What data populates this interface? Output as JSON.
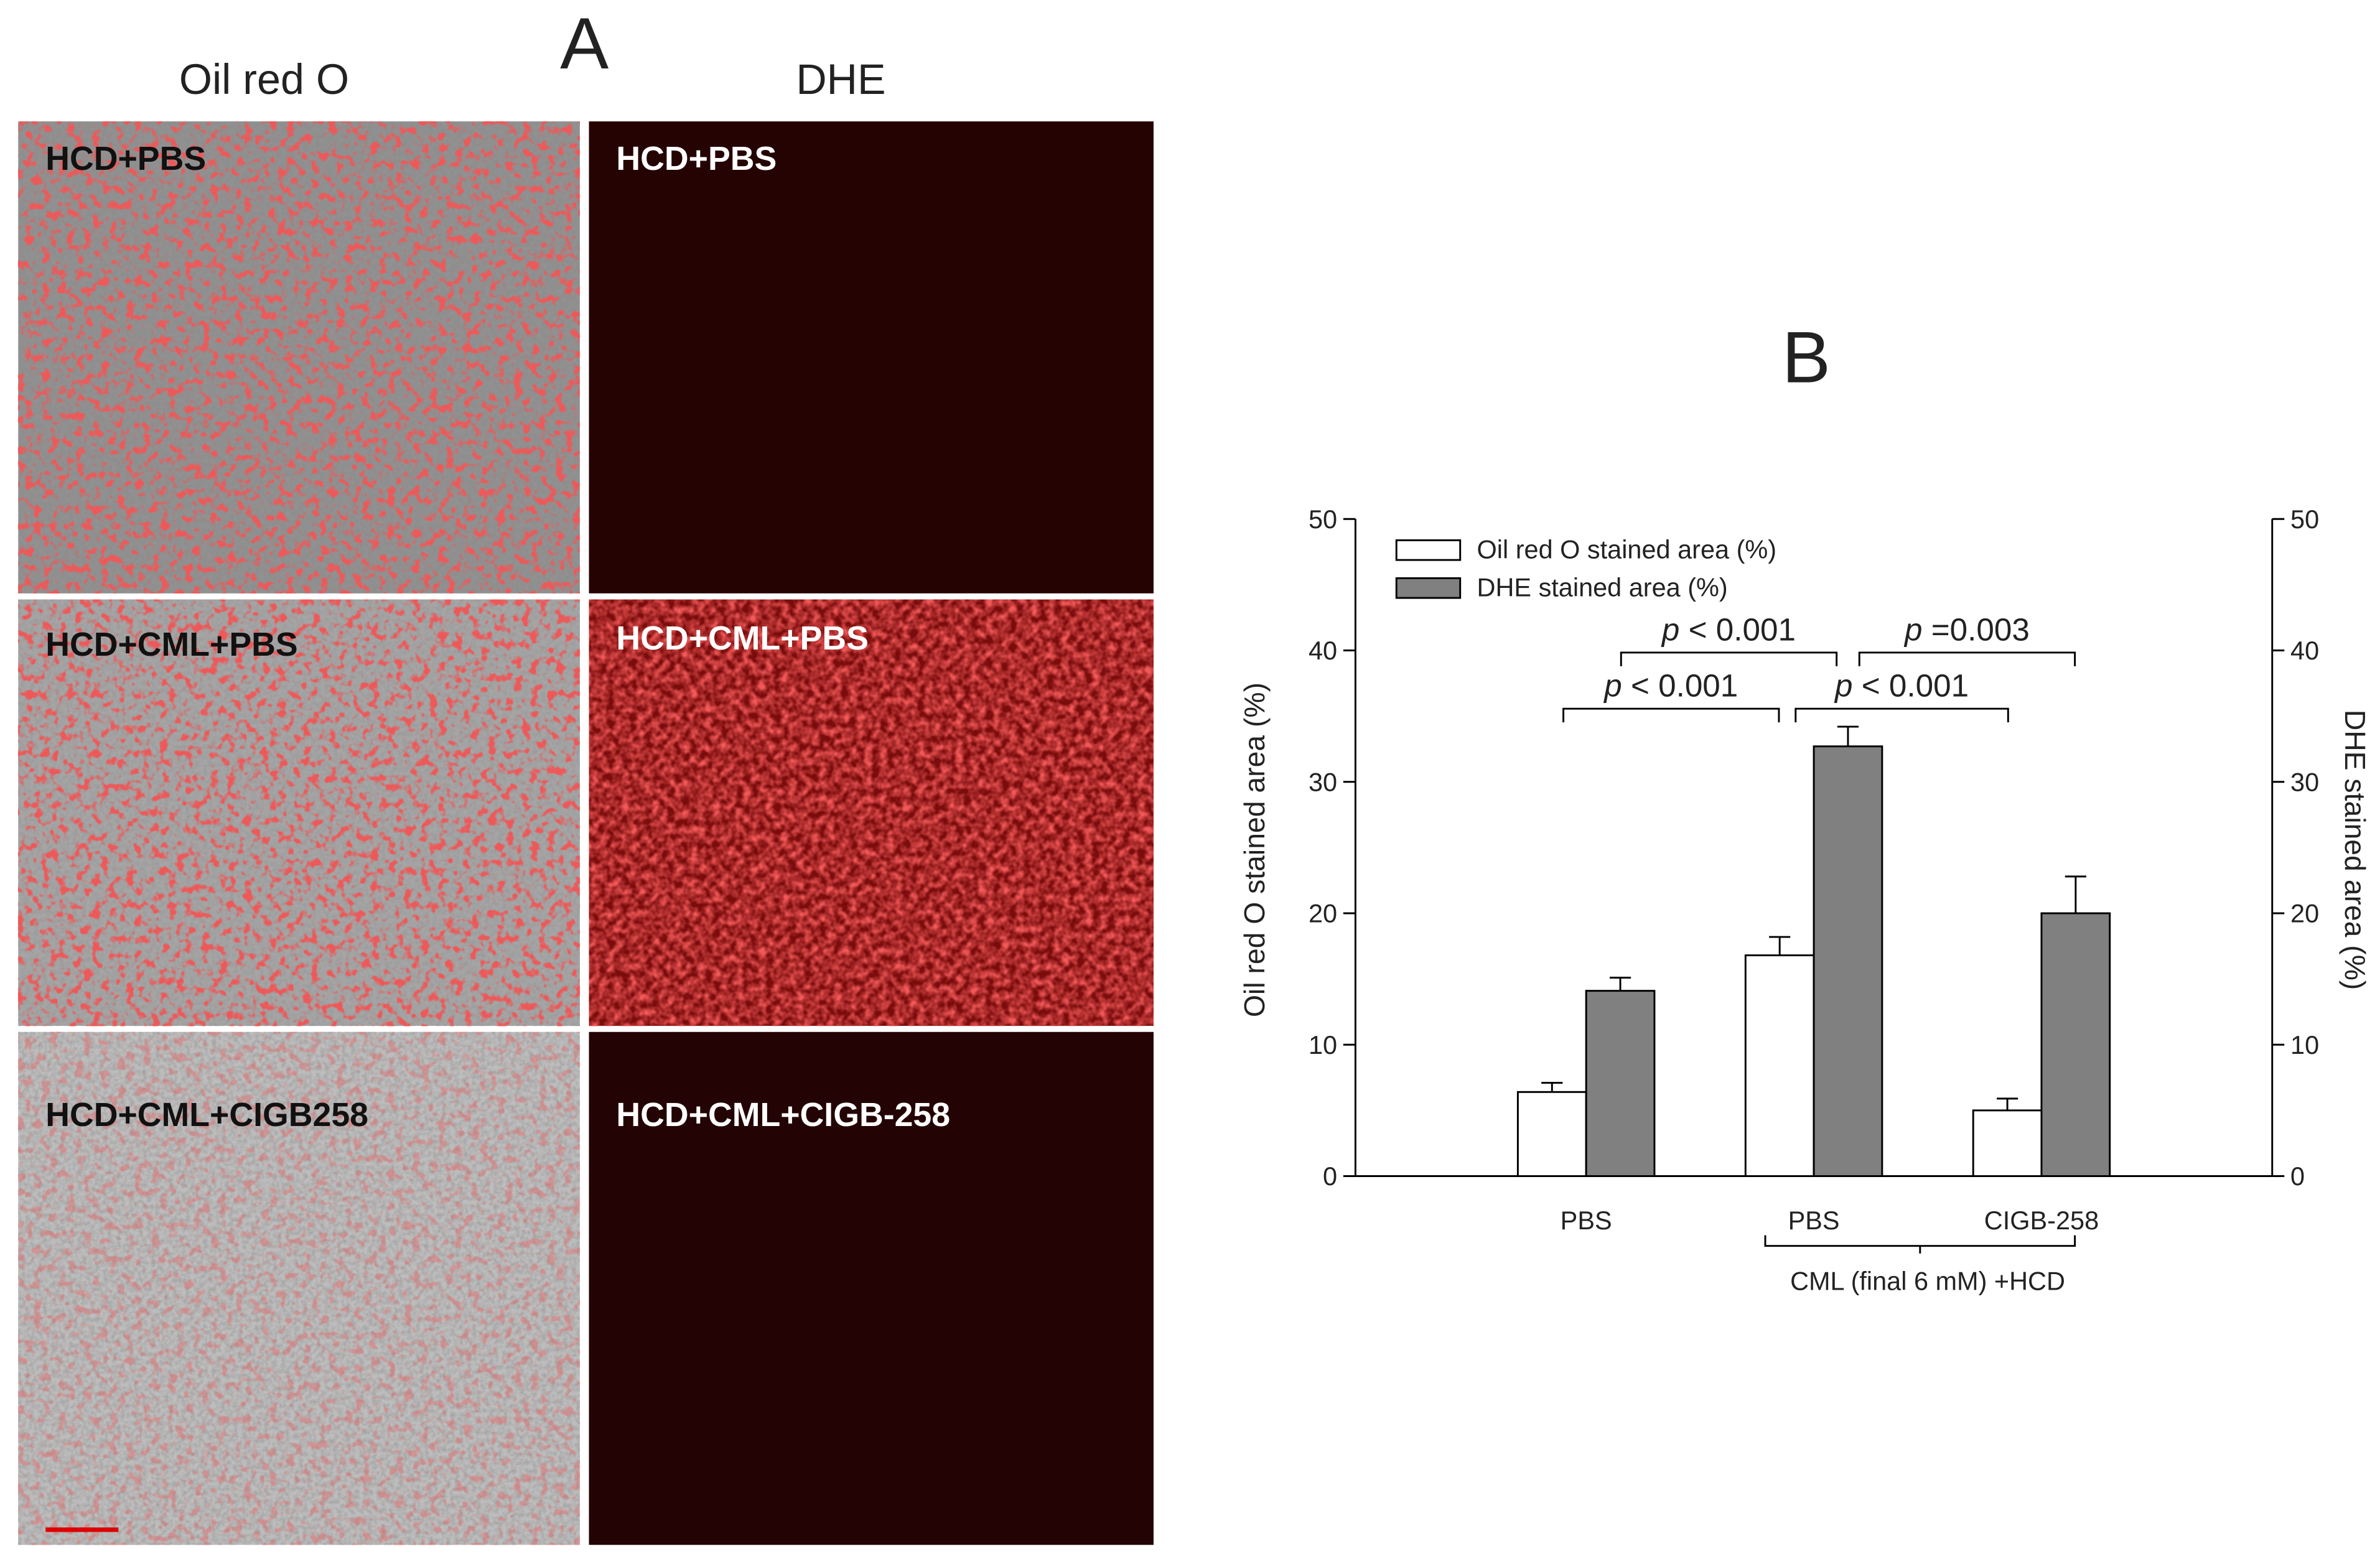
{
  "panel_a": {
    "letter": "A",
    "columns": [
      "Oil red O",
      "DHE"
    ],
    "labels": [
      [
        "HCD+PBS",
        "HCD+CML+PBS",
        "HCD+CML+CIGB258"
      ],
      [
        "HCD+PBS",
        "HCD+CML+PBS",
        "HCD+CML+CIGB-258"
      ]
    ]
  },
  "chart_data": {
    "type": "bar",
    "title": "B",
    "categories": [
      "PBS",
      "PBS",
      "CIGB-258"
    ],
    "group_label": "CML (final 6 mM) +HCD",
    "series": [
      {
        "name": "Oil red O stained area (%)",
        "color": "#ffffff",
        "values": [
          6.4,
          16.8,
          5.0
        ],
        "errors": [
          0.7,
          1.4,
          0.9
        ]
      },
      {
        "name": "DHE stained area (%)",
        "color": "#808080",
        "values": [
          14.1,
          32.7,
          20.0
        ],
        "errors": [
          1.0,
          1.5,
          2.8
        ],
        "axis": "y2"
      }
    ],
    "ylabel": "Oil red O stained area (%)",
    "y2label": "DHE stained area (%)",
    "ylim": [
      0,
      50
    ],
    "yticks": [
      0,
      10,
      20,
      30,
      40,
      50
    ],
    "y2lim": [
      0,
      50
    ],
    "y2ticks": [
      0,
      10,
      20,
      30,
      40,
      50
    ],
    "legend": "upper left",
    "annotations": [
      {
        "p": "p",
        "text": "< 0.001"
      },
      {
        "p": "p",
        "text": "=0.003"
      },
      {
        "p": "p",
        "text": "< 0.001"
      },
      {
        "p": "p",
        "text": "< 0.001"
      }
    ]
  }
}
